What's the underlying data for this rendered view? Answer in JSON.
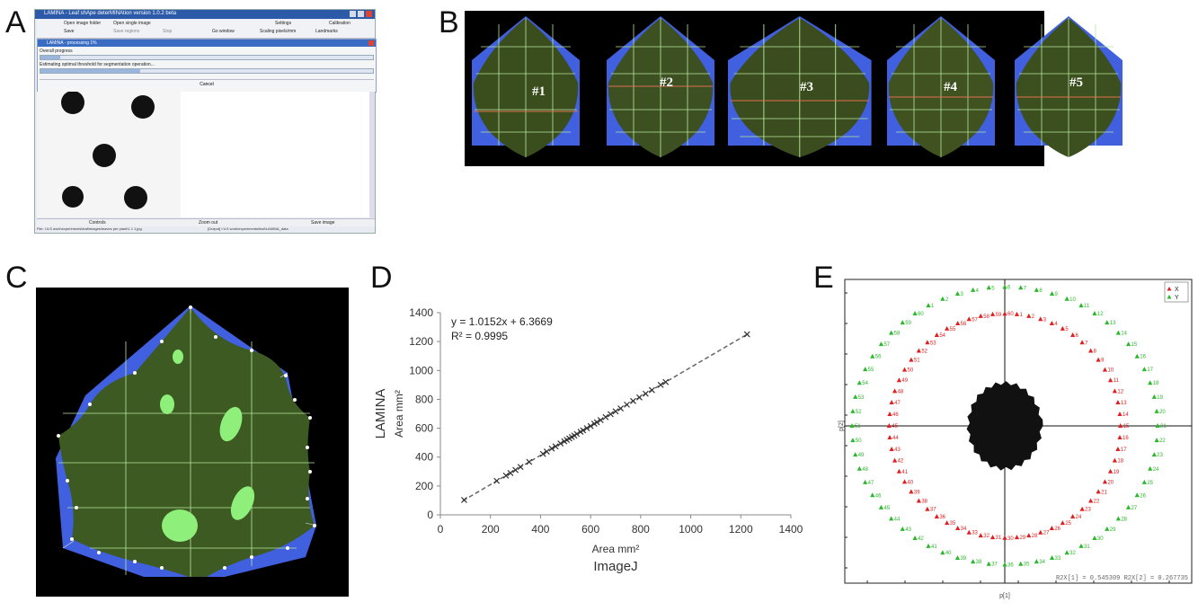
{
  "panels": {
    "a": "A",
    "b": "B",
    "c": "C",
    "d": "D",
    "e": "E"
  },
  "panelA": {
    "window_title": "LAMINA - Leaf shApe deterMINAtion version 1.0.2 beta",
    "toolbar": {
      "open_folder": "Open image folder",
      "open_single": "Open single image",
      "settings": "Settings",
      "calibration": "Calibration",
      "save": "Save",
      "save_regions": "Save regions",
      "stop": "Stop",
      "go_window": "Go window",
      "scaling": "Scaling pixels/mm",
      "landmarks": "Landmarks"
    },
    "dialog_title": "LAMINA - processing 1%",
    "status_line1": "Overall progress",
    "status_line2": "Estimating optimal threshold for segmentation operation...",
    "cancel": "Cancel",
    "bottom_controls": "Controls",
    "bottom_zoom": "Zoom out",
    "bottom_save": "Save image",
    "status_left": "File: I:\\LS work\\experiments\\leaf\\images\\leaves per plant\\1 1 1.jpg",
    "status_right": "[Output] I:\\LS work\\experiments\\leaf\\LAMINA_data"
  },
  "panelB": {
    "labels": [
      "#1",
      "#2",
      "#3",
      "#4",
      "#5"
    ]
  },
  "colors": {
    "leaf_green": "#3d5a22",
    "hull_blue": "#4060e0",
    "grid_line": "#b8e6a0",
    "mid_line": "#e07050",
    "spot_green": "#8ef07a",
    "red_marker": "#e02020",
    "green_marker": "#2cb82c",
    "trend": "#555555"
  },
  "chart_data": [
    {
      "type": "scatter",
      "title": "",
      "xlabel": "Area mm²",
      "xlabel_sub": "ImageJ",
      "ylabel": "LAMINA",
      "ylabel_sub": "Area mm²",
      "xlim": [
        0,
        1400
      ],
      "ylim": [
        0,
        1400
      ],
      "xticks": [
        "0",
        "200",
        "400",
        "600",
        "800",
        "1000",
        "1200",
        "1400"
      ],
      "yticks": [
        "0",
        "200",
        "400",
        "600",
        "800",
        "1000",
        "1200",
        "1400"
      ],
      "equation": "y = 1.0152x + 6.3669",
      "r2": "R² = 0.9995",
      "trendline": {
        "slope": 1.0152,
        "intercept": 6.3669
      },
      "x": [
        95,
        225,
        262,
        280,
        300,
        320,
        355,
        410,
        425,
        445,
        460,
        480,
        495,
        505,
        515,
        525,
        535,
        545,
        560,
        570,
        585,
        600,
        615,
        625,
        640,
        660,
        680,
        700,
        720,
        745,
        770,
        795,
        820,
        845,
        880,
        900,
        1225
      ],
      "y": [
        103,
        235,
        272,
        290,
        311,
        332,
        367,
        422,
        438,
        459,
        474,
        494,
        509,
        519,
        529,
        539,
        549,
        560,
        575,
        585,
        600,
        615,
        631,
        641,
        656,
        677,
        697,
        717,
        737,
        763,
        788,
        813,
        839,
        864,
        900,
        920,
        1250
      ]
    },
    {
      "type": "scatter",
      "title": "",
      "legend": [
        "X",
        "Y"
      ],
      "legend_position": "top-right",
      "xlabel": "p[1]",
      "ylabel": "p[2]",
      "footer": "R2X[1] = 0.545309   R2X[2] = 0.267735",
      "series": [
        {
          "name": "X",
          "color": "#e02020",
          "labels": [
            "1",
            "2",
            "3",
            "4",
            "5",
            "6",
            "7",
            "8",
            "9",
            "10",
            "11",
            "12",
            "13",
            "14",
            "15",
            "16",
            "17",
            "18",
            "19",
            "20",
            "21",
            "22",
            "23",
            "24",
            "25",
            "26",
            "27",
            "28",
            "29",
            "30",
            "31",
            "32",
            "33",
            "34",
            "35",
            "36",
            "37",
            "38",
            "39",
            "40",
            "41",
            "42",
            "43",
            "44",
            "45",
            "46",
            "47",
            "48",
            "49",
            "50",
            "51",
            "52",
            "53",
            "54",
            "55",
            "56",
            "57",
            "58",
            "59",
            "60"
          ],
          "angles": [
            84,
            78,
            72,
            66,
            60,
            54,
            48,
            42,
            36,
            30,
            24,
            18,
            12,
            6,
            0,
            -6,
            -12,
            -18,
            -24,
            -30,
            -36,
            -42,
            -48,
            -54,
            -60,
            -66,
            -72,
            -78,
            -84,
            -90,
            -96,
            -102,
            -108,
            -114,
            -120,
            -126,
            -132,
            -138,
            -144,
            -150,
            -156,
            -162,
            -168,
            -174,
            180,
            174,
            168,
            162,
            156,
            150,
            144,
            138,
            132,
            126,
            120,
            114,
            108,
            102,
            96,
            90
          ],
          "radius": 0.78
        },
        {
          "name": "Y",
          "color": "#2cb82c",
          "labels": [
            "1",
            "2",
            "3",
            "4",
            "5",
            "6",
            "7",
            "8",
            "9",
            "10",
            "11",
            "12",
            "13",
            "14",
            "15",
            "16",
            "17",
            "18",
            "19",
            "20",
            "21",
            "22",
            "23",
            "24",
            "25",
            "26",
            "27",
            "28",
            "29",
            "30",
            "31",
            "32",
            "33",
            "34",
            "35",
            "36",
            "37",
            "38",
            "39",
            "40",
            "41",
            "42",
            "43",
            "44",
            "45",
            "46",
            "47",
            "48",
            "49",
            "50",
            "51",
            "52",
            "53",
            "54",
            "55",
            "56",
            "57",
            "58",
            "59",
            "60"
          ],
          "angles": [
            120,
            114,
            108,
            102,
            96,
            90,
            84,
            78,
            72,
            66,
            60,
            54,
            48,
            42,
            36,
            30,
            24,
            18,
            12,
            6,
            0,
            -6,
            -12,
            -18,
            -24,
            -30,
            -36,
            -42,
            -48,
            -54,
            -60,
            -66,
            -72,
            -78,
            -84,
            -90,
            -96,
            -102,
            -108,
            -114,
            -120,
            -126,
            -132,
            -138,
            -144,
            -150,
            -156,
            -162,
            -168,
            -174,
            180,
            174,
            168,
            162,
            156,
            150,
            144,
            138,
            132,
            126
          ],
          "radius": 0.92
        }
      ]
    }
  ]
}
